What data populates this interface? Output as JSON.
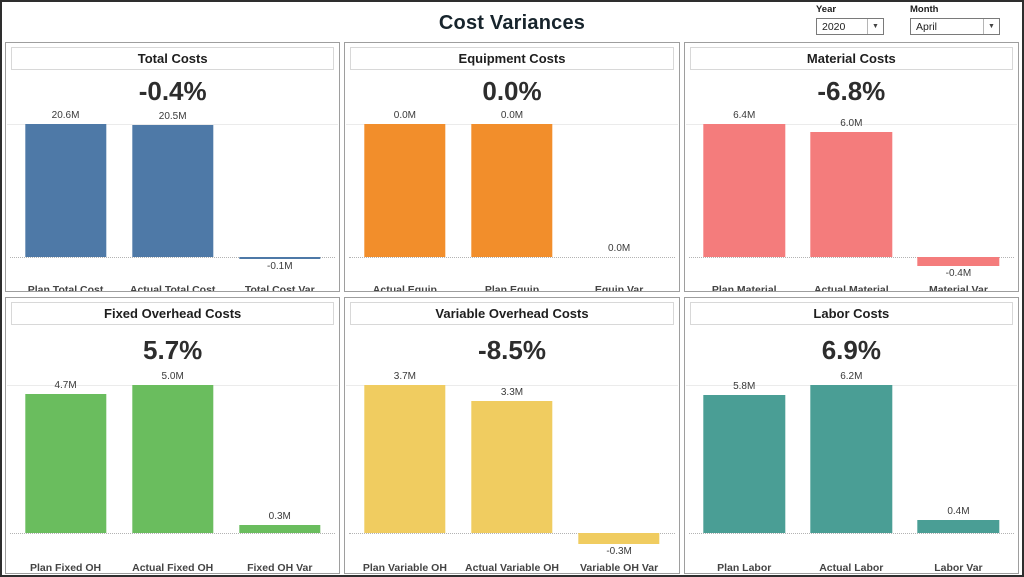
{
  "header": {
    "title": "Cost Variances",
    "filters": {
      "year": {
        "label": "Year",
        "value": "2020",
        "arrow_icon": "▼"
      },
      "month": {
        "label": "Month",
        "value": "April",
        "arrow_icon": "▼"
      }
    }
  },
  "chart_data": [
    {
      "type": "bar",
      "title": "Total Costs",
      "variance_label": "-0.4%",
      "color": "#4E79A7",
      "unit": "M",
      "categories": [
        "Plan Total Cost",
        "Actual Total Cost",
        "Total Cost Var"
      ],
      "values": [
        20.6,
        20.5,
        -0.1
      ],
      "value_labels": [
        "20.6M",
        "20.5M",
        "-0.1M"
      ],
      "height_fracs": [
        1,
        0.995,
        -0.012
      ]
    },
    {
      "type": "bar",
      "title": "Equipment Costs",
      "variance_label": "0.0%",
      "color": "#F28E2B",
      "unit": "M",
      "categories": [
        "Actual Equip",
        "Plan Equip",
        "Equip Var"
      ],
      "values": [
        0.0,
        0.0,
        0.0
      ],
      "value_labels": [
        "0.0M",
        "0.0M",
        "0.0M"
      ],
      "height_fracs": [
        1,
        1,
        0
      ]
    },
    {
      "type": "bar",
      "title": "Material Costs",
      "variance_label": "-6.8%",
      "color": "#F47C7C",
      "unit": "M",
      "categories": [
        "Plan Material",
        "Actual Material",
        "Material Var"
      ],
      "values": [
        6.4,
        6.0,
        -0.4
      ],
      "value_labels": [
        "6.4M",
        "6.0M",
        "-0.4M"
      ],
      "height_fracs": [
        1,
        0.94,
        -0.07
      ]
    },
    {
      "type": "bar",
      "title": "Fixed Overhead Costs",
      "variance_label": "5.7%",
      "color": "#6ABD5E",
      "unit": "M",
      "categories": [
        "Plan Fixed OH",
        "Actual Fixed OH",
        "Fixed OH Var"
      ],
      "values": [
        4.7,
        5.0,
        0.3
      ],
      "value_labels": [
        "4.7M",
        "5.0M",
        "0.3M"
      ],
      "height_fracs": [
        0.94,
        1,
        0.055
      ]
    },
    {
      "type": "bar",
      "title": "Variable Overhead Costs",
      "variance_label": "-8.5%",
      "color": "#F0CC60",
      "unit": "M",
      "categories": [
        "Plan Variable OH",
        "Actual Variable OH",
        "Variable OH Var"
      ],
      "values": [
        3.7,
        3.3,
        -0.3
      ],
      "value_labels": [
        "3.7M",
        "3.3M",
        "-0.3M"
      ],
      "height_fracs": [
        1,
        0.89,
        -0.075
      ]
    },
    {
      "type": "bar",
      "title": "Labor Costs",
      "variance_label": "6.9%",
      "color": "#4A9E95",
      "unit": "M",
      "categories": [
        "Plan Labor",
        "Actual Labor",
        "Labor Var"
      ],
      "values": [
        5.8,
        6.2,
        0.4
      ],
      "value_labels": [
        "5.8M",
        "6.2M",
        "0.4M"
      ],
      "height_fracs": [
        0.935,
        1,
        0.085
      ]
    }
  ]
}
